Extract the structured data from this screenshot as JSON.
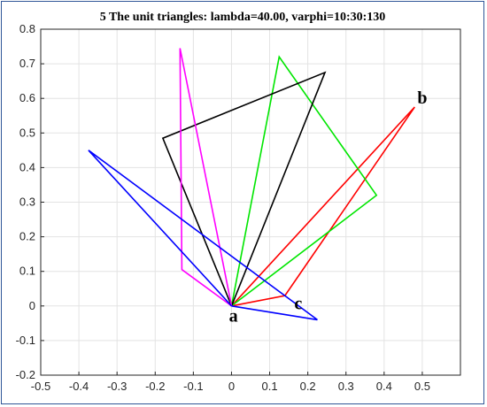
{
  "chart_data": {
    "type": "line",
    "title": "5 The unit triangles: lambda=40.00, varphi=10:30:130",
    "xlabel": "",
    "ylabel": "",
    "xlim": [
      -0.5,
      0.6
    ],
    "ylim": [
      -0.2,
      0.8
    ],
    "grid": true,
    "xticks": [
      -0.5,
      -0.4,
      -0.3,
      -0.2,
      -0.1,
      0,
      0.1,
      0.2,
      0.3,
      0.4,
      0.5
    ],
    "xtick_labels": [
      "-0.5",
      "-0.4",
      "-0.3",
      "-0.2",
      "-0.1",
      "0",
      "0.1",
      "0.2",
      "0.3",
      "0.4",
      "0.5"
    ],
    "yticks": [
      -0.2,
      -0.1,
      0,
      0.1,
      0.2,
      0.3,
      0.4,
      0.5,
      0.6,
      0.7,
      0.8
    ],
    "ytick_labels": [
      "-0.2",
      "-0.1",
      "0",
      "0.1",
      "0.2",
      "0.3",
      "0.4",
      "0.5",
      "0.6",
      "0.7",
      "0.8"
    ],
    "series": [
      {
        "color": "#ff0000",
        "x": [
          0,
          0.48,
          0.14,
          0
        ],
        "y": [
          0,
          0.575,
          0.03,
          0
        ]
      },
      {
        "color": "#00e600",
        "x": [
          0,
          0.125,
          0.38,
          0
        ],
        "y": [
          0,
          0.72,
          0.32,
          0
        ]
      },
      {
        "color": "#000000",
        "x": [
          0,
          0.245,
          -0.18,
          0
        ],
        "y": [
          0,
          0.675,
          0.485,
          0
        ]
      },
      {
        "color": "#ff00ff",
        "x": [
          0,
          -0.135,
          -0.13,
          0
        ],
        "y": [
          0,
          0.745,
          0.105,
          0
        ]
      },
      {
        "color": "#0000ff",
        "x": [
          0,
          -0.375,
          0.225,
          0
        ],
        "y": [
          0,
          0.45,
          -0.04,
          0
        ]
      }
    ],
    "annotations": [
      {
        "text": "a",
        "x": 0.005,
        "y": -0.045
      },
      {
        "text": "b",
        "x": 0.5,
        "y": 0.585
      },
      {
        "text": "c",
        "x": 0.175,
        "y": -0.01
      }
    ]
  }
}
